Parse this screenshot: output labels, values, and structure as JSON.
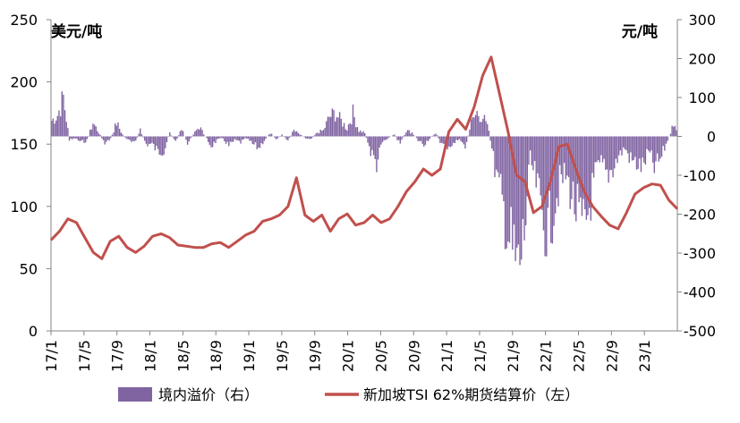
{
  "chart_data": {
    "type": "bar+line",
    "left_unit": "美元/吨",
    "right_unit": "元/吨",
    "x_ticks": [
      "17/1",
      "17/5",
      "17/9",
      "18/1",
      "18/5",
      "18/9",
      "19/1",
      "19/5",
      "19/9",
      "20/1",
      "20/5",
      "20/9",
      "21/1",
      "21/5",
      "21/9",
      "22/1",
      "22/5",
      "22/9",
      "23/1"
    ],
    "left_axis": {
      "min": 0,
      "max": 250,
      "ticks": [
        0,
        50,
        100,
        150,
        200,
        250
      ]
    },
    "right_axis": {
      "min": -500,
      "max": 300,
      "ticks": [
        -500,
        -400,
        -300,
        -200,
        -100,
        0,
        100,
        200,
        300
      ]
    },
    "grid": false,
    "legend_position": "bottom",
    "series": [
      {
        "name": "境内溢价（右）",
        "type": "bar",
        "axis": "right",
        "color": "#8064A2",
        "monthly_values": [
          40,
          55,
          100,
          -10,
          -5,
          -15,
          -10,
          35,
          10,
          -20,
          -5,
          35,
          5,
          -10,
          -20,
          15,
          -20,
          -20,
          -40,
          -35,
          10,
          -15,
          20,
          -20,
          5,
          25,
          0,
          -25,
          -10,
          -5,
          -25,
          -10,
          -15,
          -5,
          -20,
          -30,
          -10,
          10,
          -10,
          5,
          -10,
          15,
          5,
          -5,
          -5,
          10,
          15,
          50,
          60,
          40,
          20,
          60,
          15,
          10,
          -40,
          -70,
          -15,
          -5,
          5,
          -20,
          15,
          10,
          -10,
          -20,
          -5,
          10,
          -20,
          -25,
          -20,
          -5,
          -30,
          35,
          60,
          50,
          15,
          -80,
          -150,
          -230,
          -300,
          -350,
          -250,
          -60,
          -120,
          -200,
          -250,
          -180,
          -120,
          -100,
          -150,
          -200,
          -250,
          -180,
          -100,
          -70,
          -100,
          -80,
          -50,
          -30,
          -60,
          -70,
          -80,
          -40,
          -80,
          -60,
          -20,
          20
        ]
      },
      {
        "name": "新加坡TSI 62%期货结算价（左）",
        "type": "line",
        "axis": "left",
        "color": "#C0504D",
        "monthly_values": [
          73,
          80,
          90,
          87,
          75,
          63,
          58,
          72,
          76,
          67,
          63,
          68,
          76,
          78,
          75,
          69,
          68,
          67,
          67,
          70,
          71,
          67,
          72,
          77,
          80,
          88,
          90,
          93,
          100,
          123,
          93,
          88,
          93,
          80,
          90,
          94,
          85,
          87,
          93,
          87,
          90,
          100,
          112,
          120,
          130,
          125,
          130,
          160,
          170,
          162,
          180,
          205,
          220,
          190,
          160,
          125,
          120,
          95,
          100,
          120,
          148,
          150,
          130,
          112,
          100,
          92,
          85,
          82,
          95,
          110,
          115,
          118,
          117,
          105,
          98
        ]
      }
    ]
  }
}
